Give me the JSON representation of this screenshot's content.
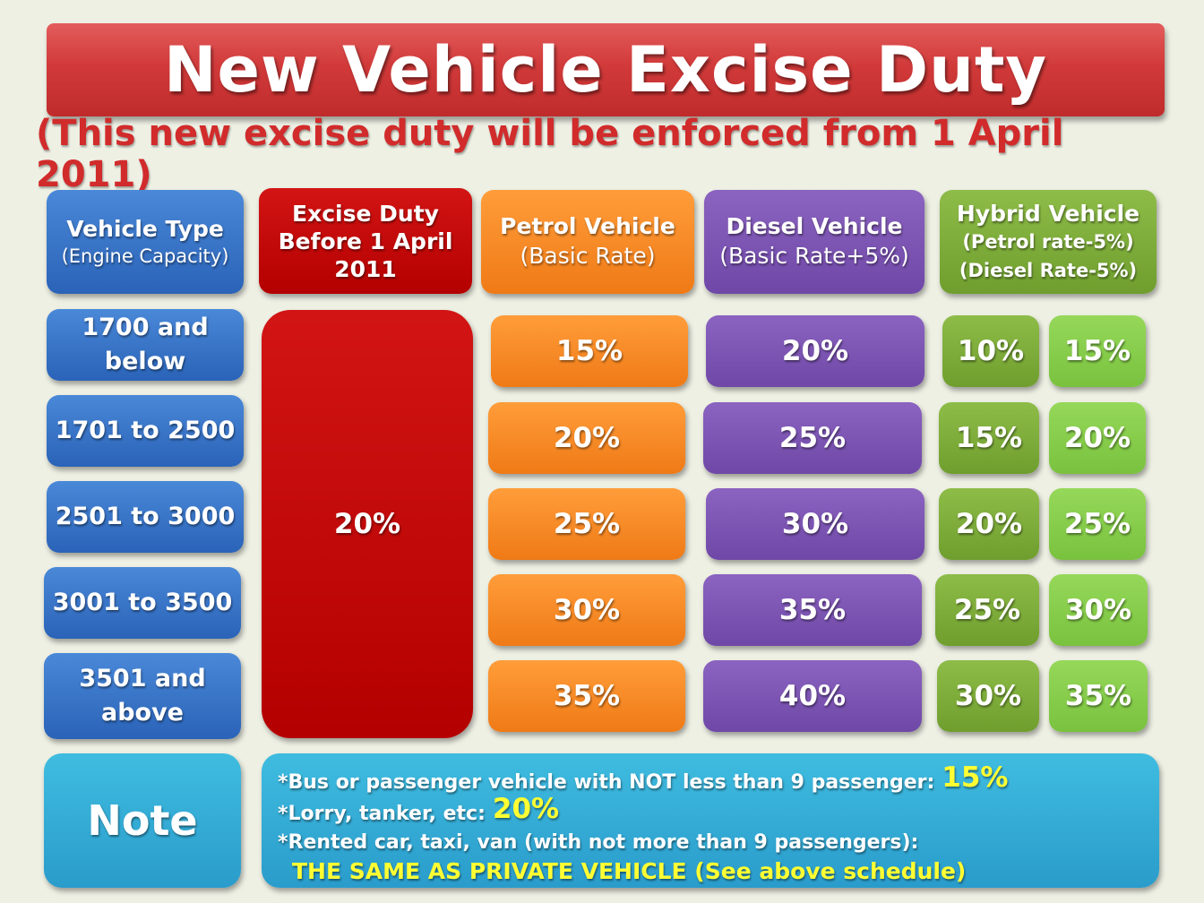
{
  "title": "New Vehicle Excise Duty",
  "subtitle": "(This new excise duty will be enforced from 1 April 2011)",
  "headers": {
    "vehicle_type": {
      "main": "Vehicle Type",
      "sub": "(Engine Capacity)"
    },
    "before": {
      "lines": [
        "Excise Duty",
        "Before 1 April",
        "2011"
      ]
    },
    "petrol": {
      "main": "Petrol Vehicle",
      "sub": "(Basic Rate)"
    },
    "diesel": {
      "main": "Diesel Vehicle",
      "sub": "(Basic Rate+5%)"
    },
    "hybrid": {
      "main": "Hybrid Vehicle",
      "sub1": "(Petrol rate-5%)",
      "sub2": "(Diesel Rate-5%)"
    }
  },
  "before_value": "20%",
  "rows": [
    {
      "capacity": [
        "1700 and",
        "below"
      ],
      "petrol": "15%",
      "diesel": "20%",
      "hybrid_petrol": "10%",
      "hybrid_diesel": "15%"
    },
    {
      "capacity": [
        "1701 to 2500"
      ],
      "petrol": "20%",
      "diesel": "25%",
      "hybrid_petrol": "15%",
      "hybrid_diesel": "20%"
    },
    {
      "capacity": [
        "2501 to 3000"
      ],
      "petrol": "25%",
      "diesel": "30%",
      "hybrid_petrol": "20%",
      "hybrid_diesel": "25%"
    },
    {
      "capacity": [
        "3001 to 3500"
      ],
      "petrol": "30%",
      "diesel": "35%",
      "hybrid_petrol": "25%",
      "hybrid_diesel": "30%"
    },
    {
      "capacity": [
        "3501 and",
        "above"
      ],
      "petrol": "35%",
      "diesel": "40%",
      "hybrid_petrol": "30%",
      "hybrid_diesel": "35%"
    }
  ],
  "note": {
    "label": "Note",
    "line1": "*Bus or  passenger  vehicle with NOT less than 9 passenger:",
    "line1_value": "15%",
    "line2": "*Lorry, tanker, etc:",
    "line2_value": "20%",
    "line3": "*Rented car, taxi, van (with not more than 9 passengers):",
    "line4": "THE SAME AS PRIVATE VEHICLE (See above schedule)"
  },
  "colors": {
    "title_red": "#d23a3a",
    "subtitle_red": "#d12b2b",
    "blue": "#2a63b8",
    "red": "#c00000",
    "orange": "#f7882a",
    "purple": "#7a52b3",
    "green_dark": "#77a636",
    "green_light": "#86d04c",
    "teal": "#30a9d4",
    "highlight_yellow": "#ffff33"
  }
}
